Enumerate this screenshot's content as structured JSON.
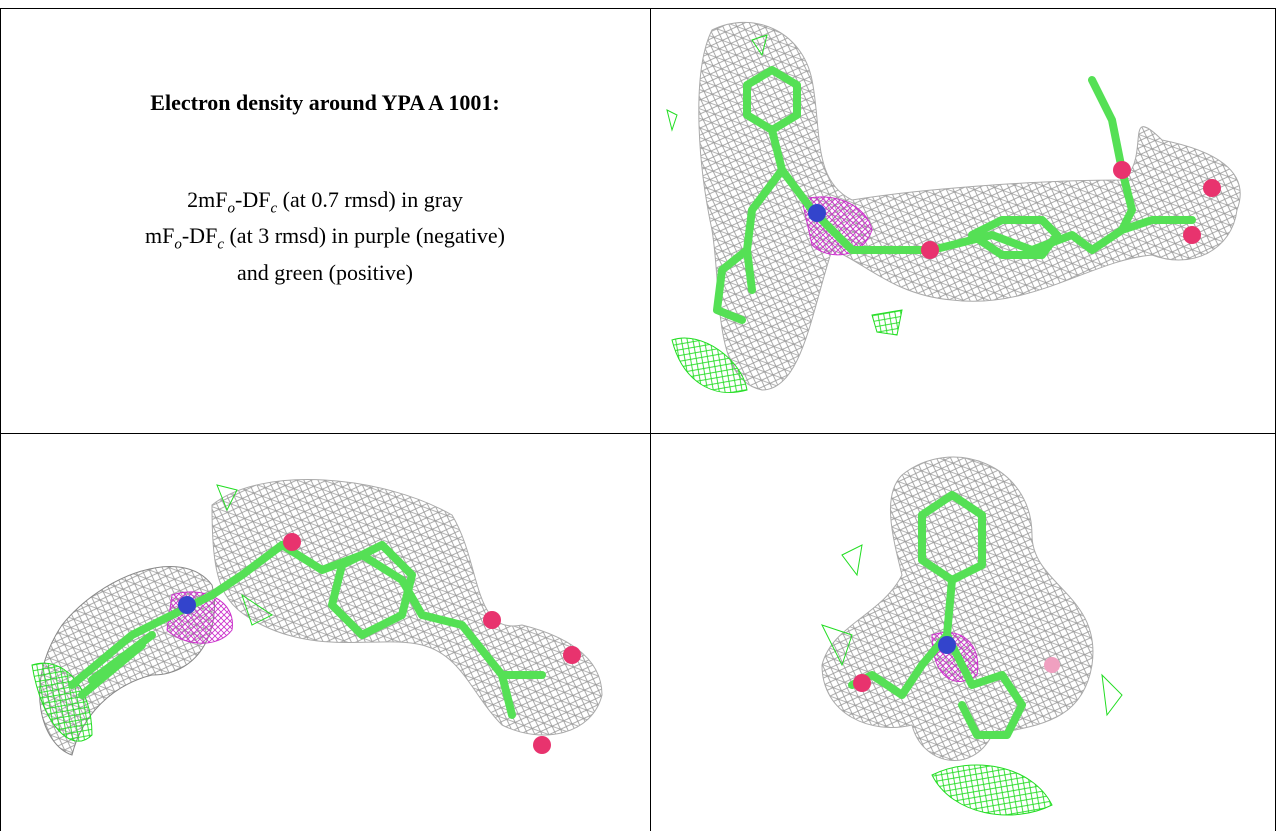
{
  "caption": {
    "title": "Electron density around YPA A 1001:",
    "lines": [
      [
        "2mF",
        "o",
        "-DF",
        "c",
        " (at 0.7 rmsd) in gray"
      ],
      [
        "mF",
        "o",
        "-DF",
        "c",
        " (at 3 rmsd) in purple (negative)"
      ],
      [
        "and green (positive)"
      ]
    ]
  }
}
